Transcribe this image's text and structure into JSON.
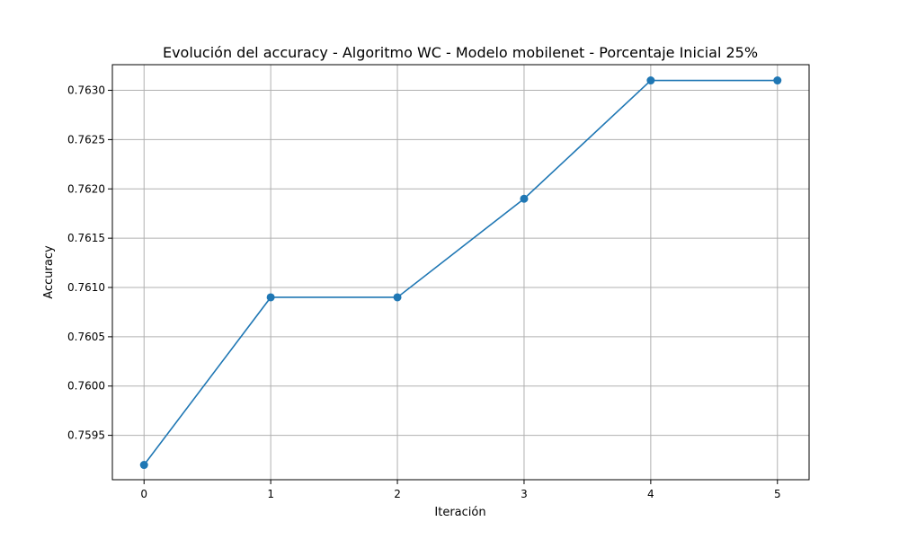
{
  "chart_data": {
    "type": "line",
    "title": "Evolución del accuracy - Algoritmo WC - Modelo mobilenet - Porcentaje Inicial 25%",
    "xlabel": "Iteración",
    "ylabel": "Accuracy",
    "x": [
      0,
      1,
      2,
      3,
      4,
      5
    ],
    "series": [
      {
        "values": [
          0.7592,
          0.7609,
          0.7609,
          0.7619,
          0.7631,
          0.7631
        ]
      }
    ],
    "xlim": [
      -0.25,
      5.25
    ],
    "ylim": [
      0.75905,
      0.76326
    ],
    "xticks": [
      "0",
      "1",
      "2",
      "3",
      "4",
      "5"
    ],
    "yticks": [
      "0.7595",
      "0.7600",
      "0.7605",
      "0.7610",
      "0.7615",
      "0.7620",
      "0.7625",
      "0.7630"
    ],
    "grid": true,
    "marker": "circle",
    "line_color": "#1f77b4"
  }
}
